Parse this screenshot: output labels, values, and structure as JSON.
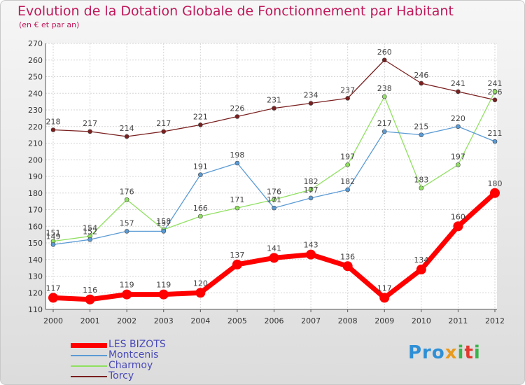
{
  "header": {
    "title": "Evolution de la Dotation Globale de Fonctionnement par Habitant",
    "subtitle": "(en € et par an)"
  },
  "logo": {
    "text": "Proxiti"
  },
  "chart_data": {
    "type": "line",
    "title": "Evolution de la Dotation Globale de Fonctionnement par Habitant",
    "subtitle": "(en € et par an)",
    "xlabel": "",
    "ylabel": "",
    "x": [
      "2000",
      "2001",
      "2002",
      "2003",
      "2004",
      "2005",
      "2006",
      "2007",
      "2008",
      "2009",
      "2010",
      "2011",
      "2012"
    ],
    "ylim": [
      110,
      270
    ],
    "yticks": [
      110,
      120,
      130,
      140,
      150,
      160,
      170,
      180,
      190,
      200,
      210,
      220,
      230,
      240,
      250,
      260,
      270
    ],
    "grid": true,
    "legend_position": "bottom-left",
    "series": [
      {
        "name": "LES BIZOTS",
        "color": "#ff0000",
        "values": [
          117,
          116,
          119,
          119,
          120,
          137,
          141,
          143,
          136,
          117,
          134,
          160,
          180
        ]
      },
      {
        "name": "Montcenis",
        "color": "#5b9bd5",
        "values": [
          149,
          152,
          157,
          157,
          191,
          198,
          171,
          177,
          182,
          217,
          215,
          220,
          211
        ]
      },
      {
        "name": "Charmoy",
        "color": "#90e060",
        "values": [
          151,
          154,
          176,
          158,
          166,
          171,
          176,
          182,
          197,
          238,
          183,
          197,
          241
        ]
      },
      {
        "name": "Torcy",
        "color": "#7a1f1f",
        "values": [
          218,
          217,
          214,
          217,
          221,
          226,
          231,
          234,
          237,
          260,
          246,
          241,
          236
        ]
      }
    ]
  }
}
